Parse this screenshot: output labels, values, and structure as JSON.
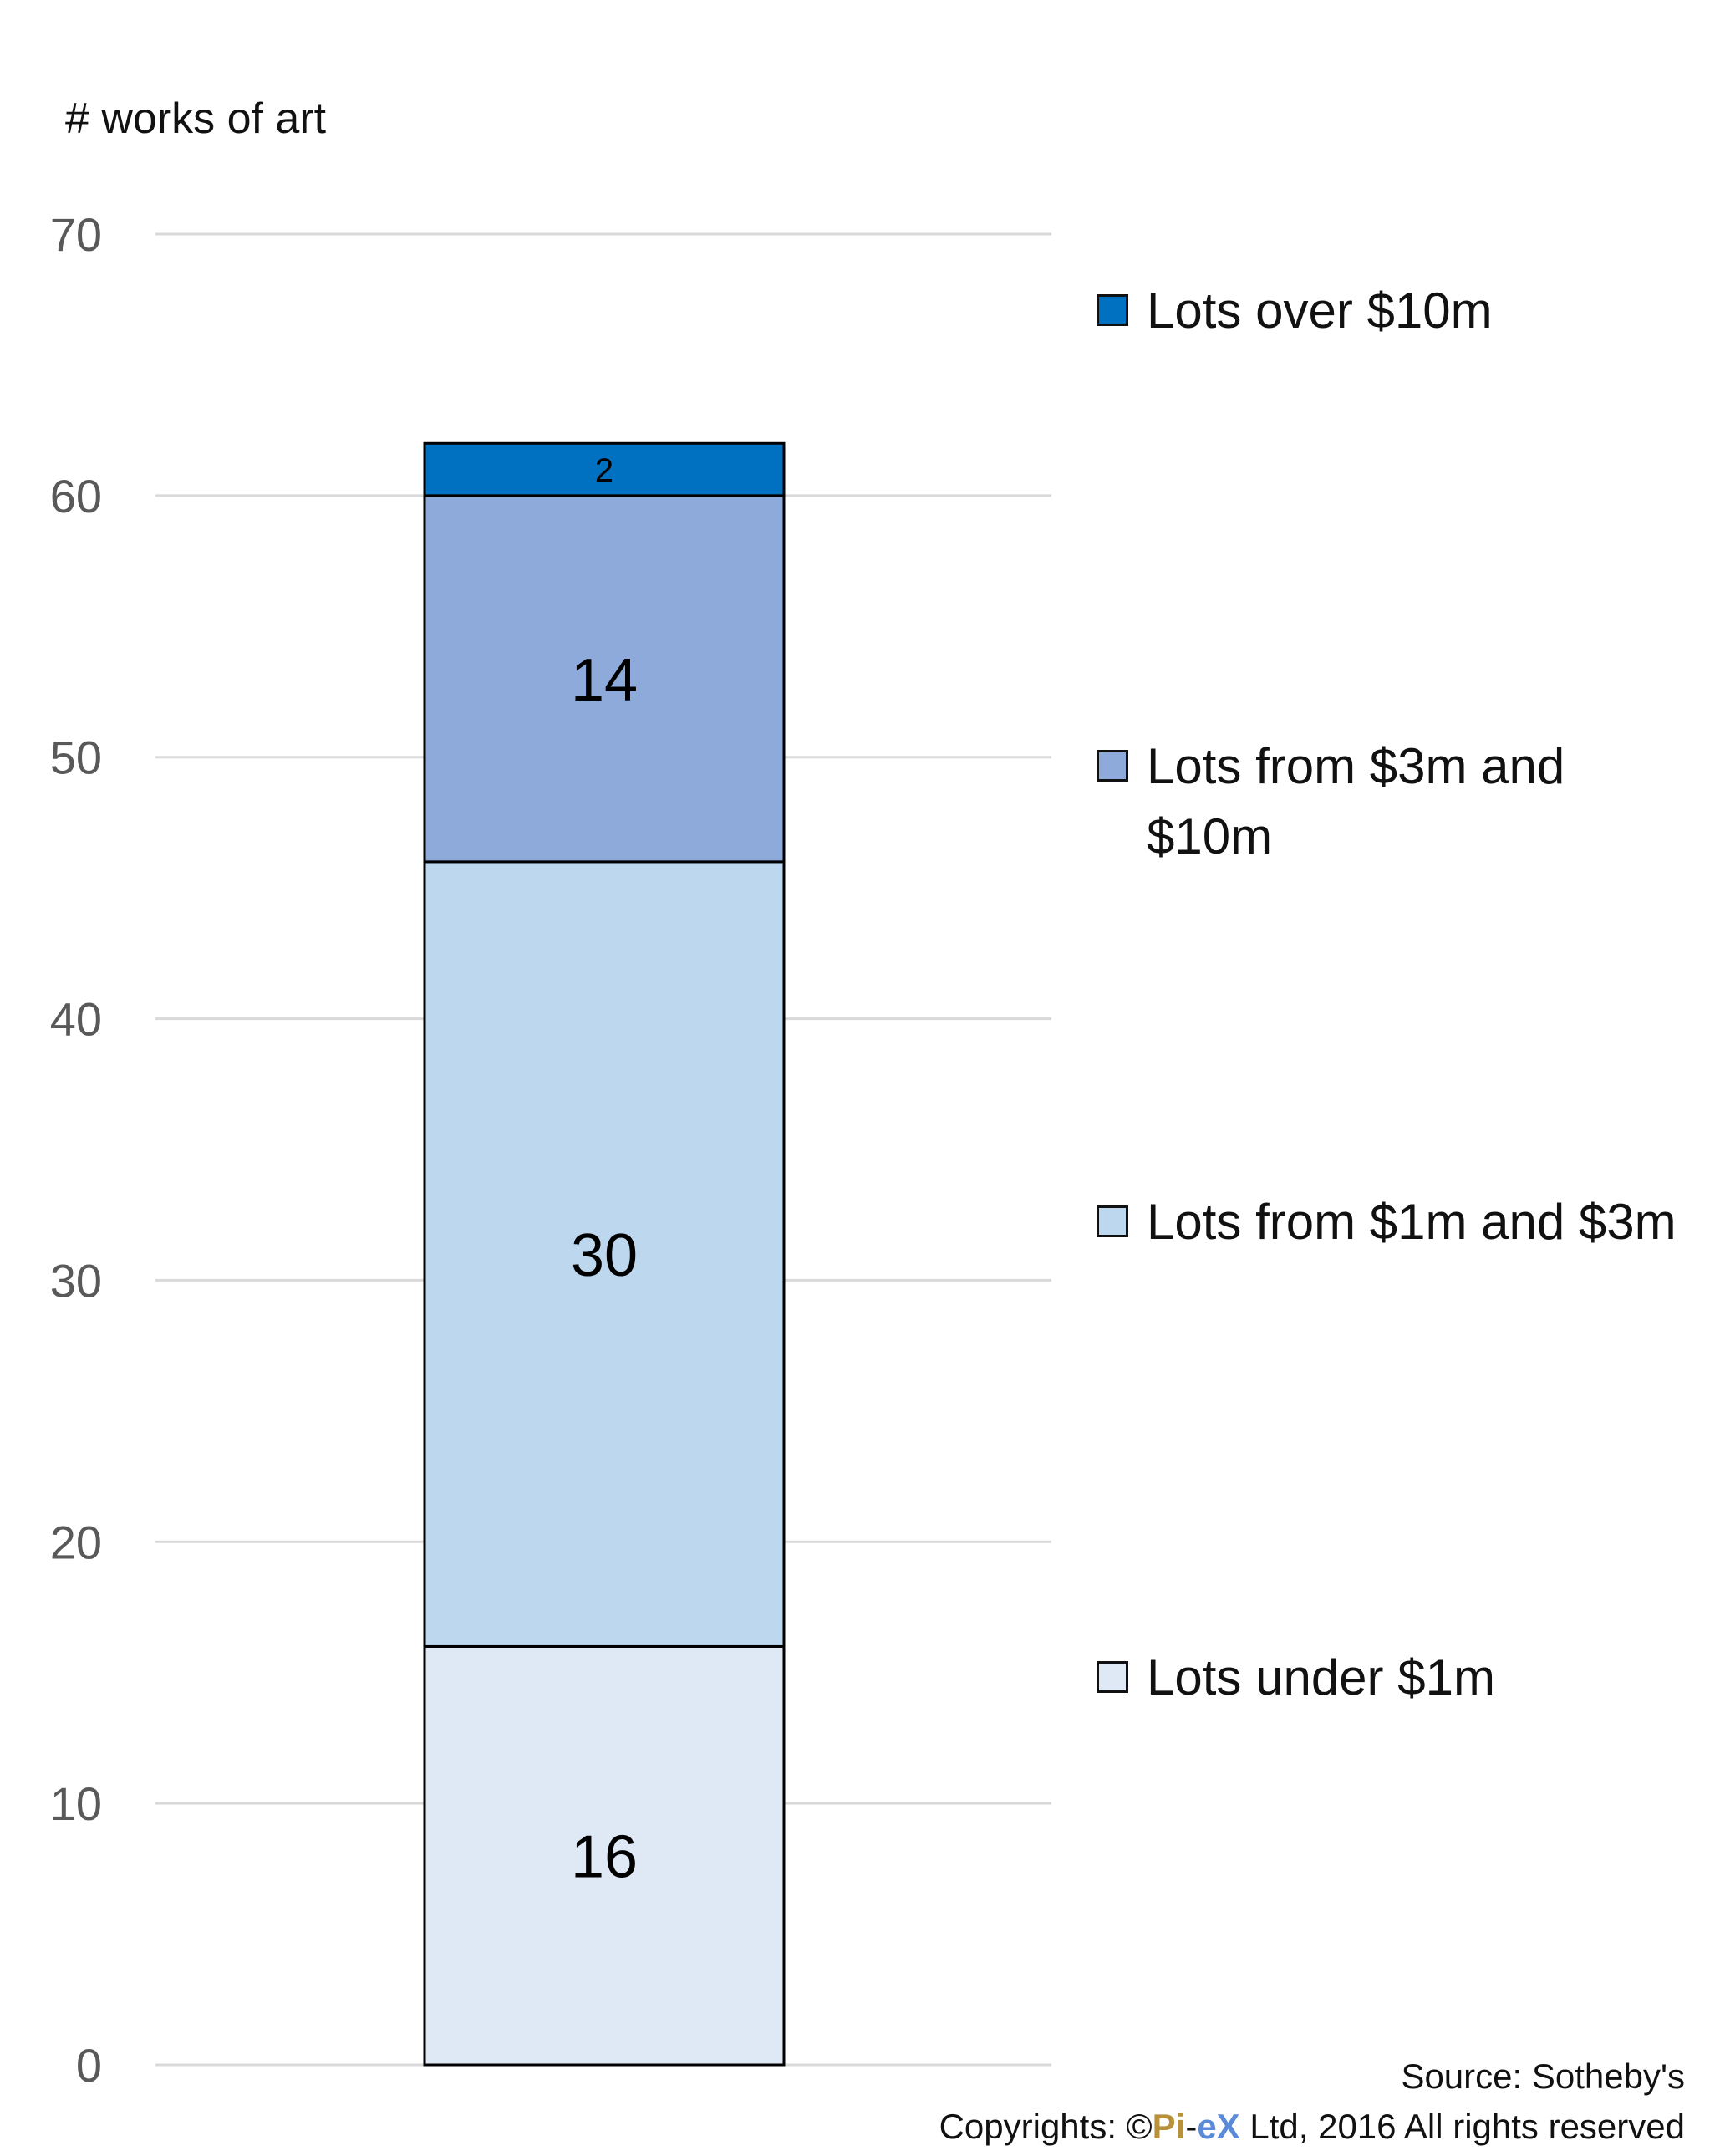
{
  "chart_data": {
    "type": "bar",
    "stacked": true,
    "categories": [
      ""
    ],
    "ylabel": "# works of art",
    "ylim": [
      0,
      70
    ],
    "yticks": [
      0,
      10,
      20,
      30,
      40,
      50,
      60,
      70
    ],
    "grid": true,
    "legend_position": "right",
    "series": [
      {
        "name": "Lots under $1m",
        "values": [
          16
        ],
        "color": "#dfe9f5"
      },
      {
        "name": "Lots from $1m and $3m",
        "values": [
          30
        ],
        "color": "#bdd7ee"
      },
      {
        "name": "Lots from $3m and $10m",
        "values": [
          14
        ],
        "color": "#8eaadb"
      },
      {
        "name": "Lots over $10m",
        "values": [
          2
        ],
        "color": "#0070c0"
      }
    ]
  },
  "footer": {
    "source": "Source: Sotheby's",
    "copyright_prefix": "Copyrights: ©",
    "brand_pi": "Pi",
    "brand_dash": "-",
    "brand_ex": "eX",
    "copyright_suffix": " Ltd, 2016 All rights reserved"
  }
}
